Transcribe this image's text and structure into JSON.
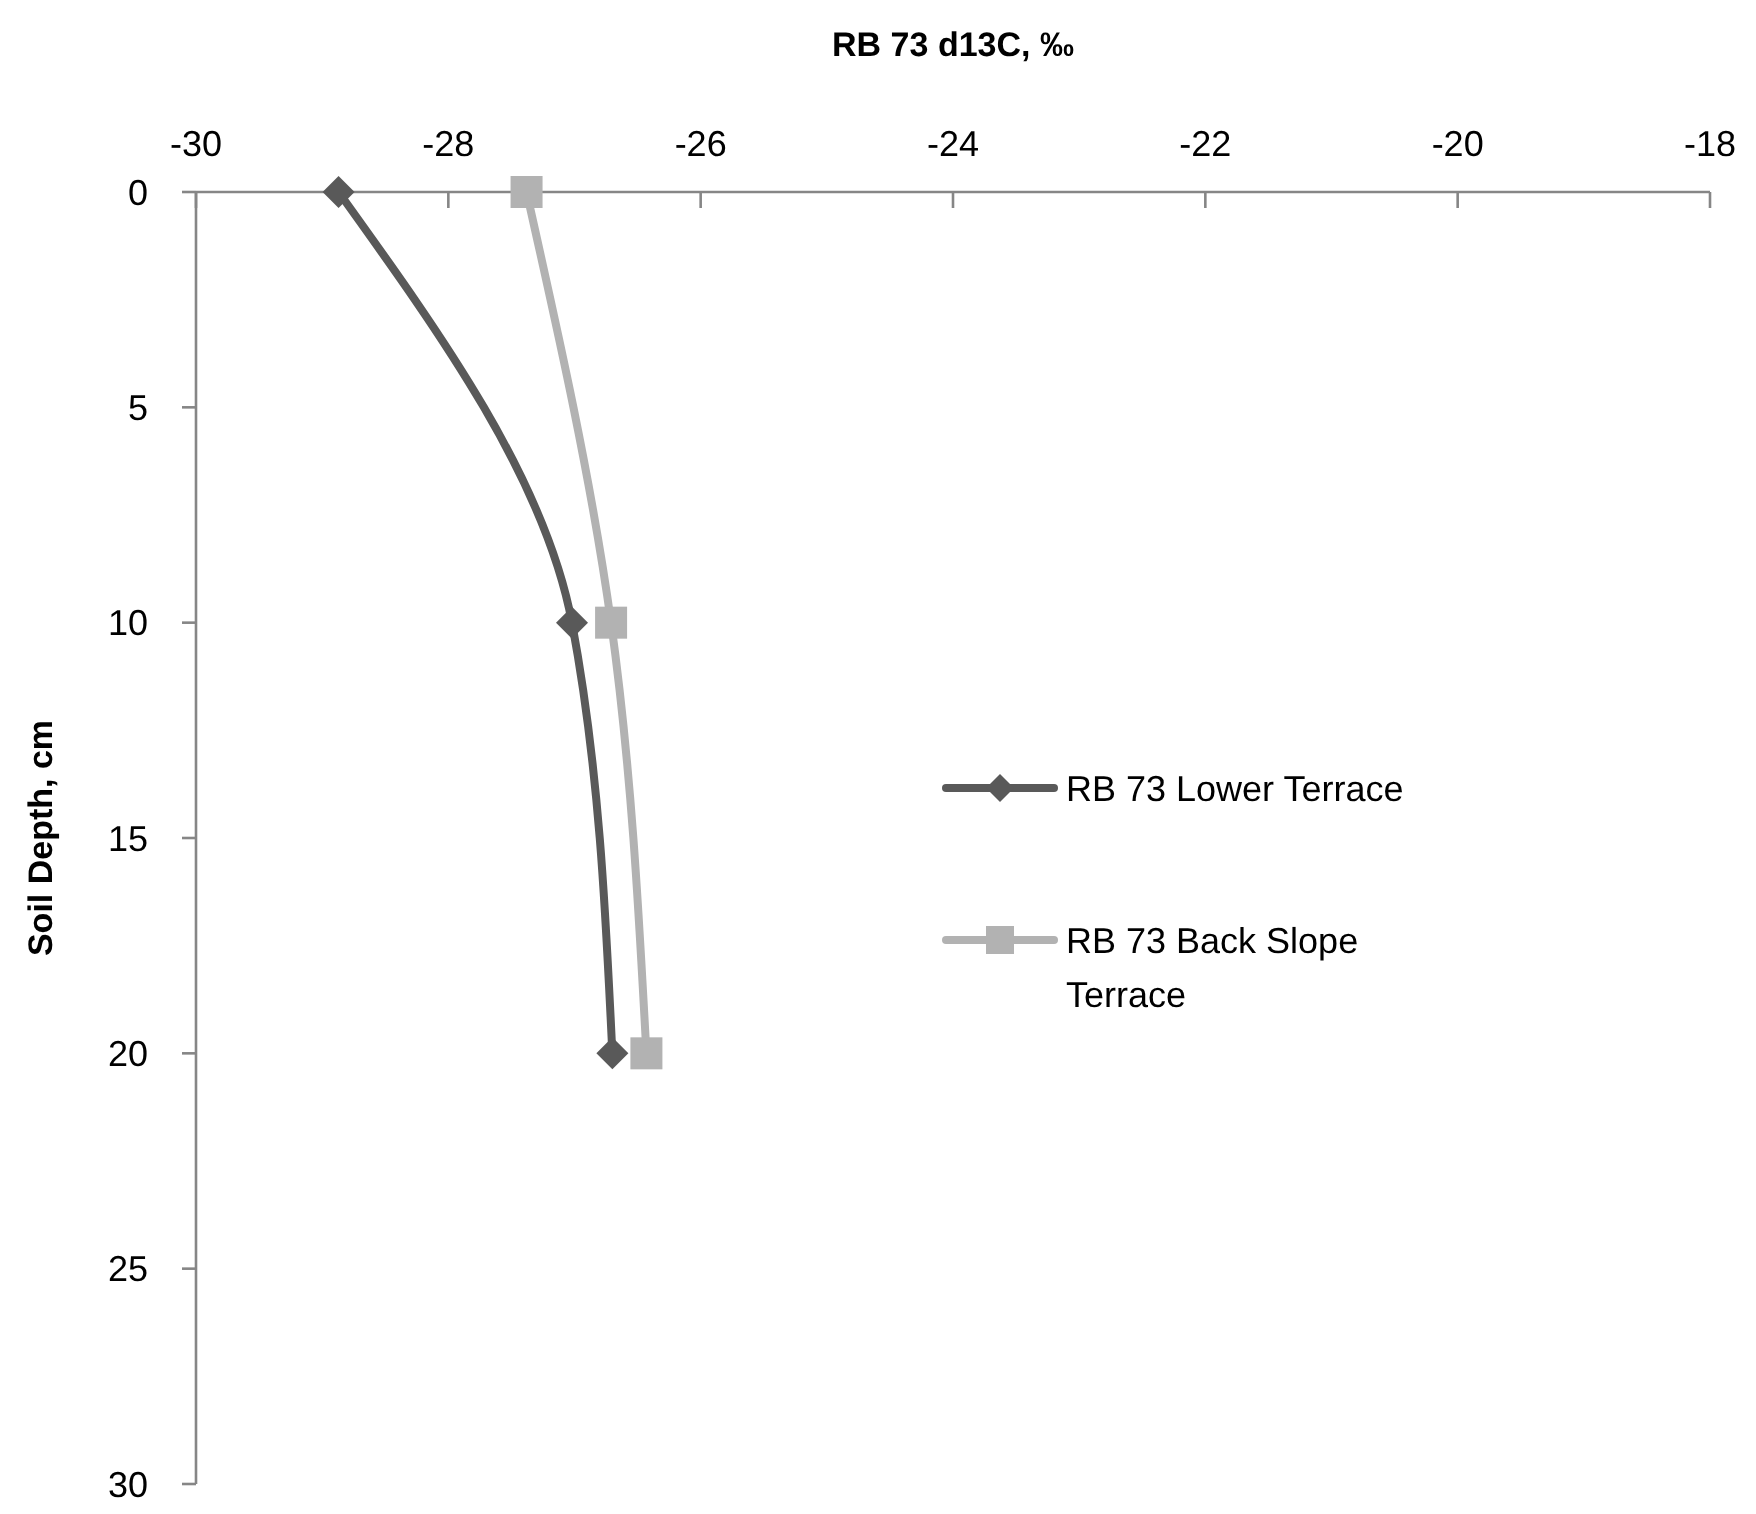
{
  "chart_data": {
    "type": "line",
    "xlabel": "RB 73 d13C, ‰",
    "ylabel": "Soil Depth, cm",
    "xlim": [
      -30,
      -18
    ],
    "xticks": [
      -30,
      -28,
      -26,
      -24,
      -22,
      -20,
      -18
    ],
    "ylim": [
      30,
      0
    ],
    "yticks": [
      0,
      5,
      10,
      15,
      20,
      25,
      30
    ],
    "grid": false,
    "legend": "right",
    "series": [
      {
        "name": "RB 73 Lower Terrace",
        "color": "#595959",
        "marker": "diamond",
        "x": [
          -28.87,
          -27.02,
          -26.7
        ],
        "values": [
          0,
          10,
          20
        ]
      },
      {
        "name": "RB 73 Back Slope Terrace",
        "color": "#b2b2b2",
        "marker": "square",
        "x": [
          -27.38,
          -26.71,
          -26.43
        ],
        "values": [
          0,
          10,
          20
        ]
      }
    ]
  }
}
